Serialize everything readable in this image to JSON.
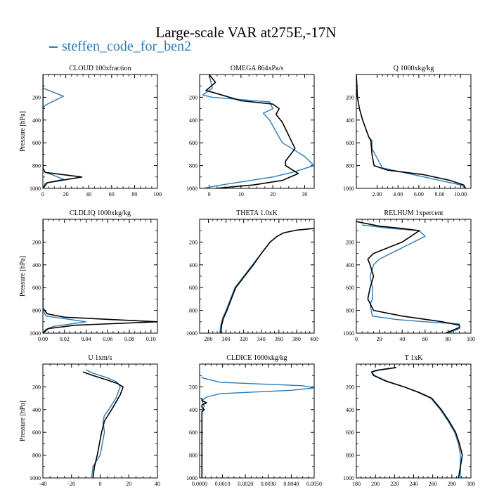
{
  "figure": {
    "title": "Large-scale VAR at275E,-17N",
    "legend": [
      {
        "name": "steffen_code_for_ben2",
        "color": "#2b7bb9"
      }
    ]
  },
  "chart_data": [
    {
      "type": "line",
      "title": "CLOUD  100xfraction",
      "ylabel": "Pressure [hPa]",
      "xlim": [
        0,
        100
      ],
      "xticks": [
        0,
        20,
        40,
        60,
        80,
        100
      ],
      "xtick_labels": [
        "0",
        "20",
        "40",
        "60",
        "80",
        "100"
      ],
      "ylim": [
        1000,
        0
      ],
      "yticks": [
        200,
        400,
        600,
        800,
        1000
      ],
      "series": [
        {
          "color": "#2b7bb9",
          "x": [
            0,
            0,
            18,
            2,
            0,
            0,
            0,
            8,
            18,
            2,
            0
          ],
          "y": [
            0,
            120,
            190,
            270,
            300,
            770,
            850,
            880,
            920,
            955,
            1000
          ]
        },
        {
          "color": "#000000",
          "x": [
            0,
            0,
            0,
            2,
            34,
            4,
            0
          ],
          "y": [
            0,
            770,
            820,
            860,
            900,
            950,
            1000
          ]
        }
      ]
    },
    {
      "type": "line",
      "title": "OMEGA  864xPa/s",
      "ylabel": "",
      "xlim": [
        -3,
        33
      ],
      "xticks": [
        0,
        10,
        20,
        30
      ],
      "xtick_labels": [
        "0",
        "10",
        "20",
        "30"
      ],
      "ylim": [
        1000,
        0
      ],
      "yticks": [
        200,
        400,
        600,
        800,
        1000
      ],
      "series": [
        {
          "color": "#2b7bb9",
          "x": [
            0,
            1,
            -2,
            1,
            19,
            20,
            17,
            19,
            20,
            23,
            26,
            30,
            33,
            26,
            20,
            4,
            -2
          ],
          "y": [
            0,
            120,
            180,
            200,
            240,
            300,
            340,
            400,
            450,
            600,
            650,
            720,
            800,
            860,
            900,
            970,
            1000
          ]
        },
        {
          "color": "#000000",
          "x": [
            0,
            2,
            -1,
            4,
            10,
            20,
            22,
            21,
            23,
            27,
            24,
            24,
            28,
            23,
            14,
            2
          ],
          "y": [
            0,
            70,
            140,
            180,
            230,
            260,
            300,
            350,
            420,
            650,
            760,
            800,
            870,
            930,
            970,
            1000
          ]
        }
      ]
    },
    {
      "type": "line",
      "title": "Q  1000xkg/kg",
      "ylabel": "",
      "xlim": [
        0,
        11
      ],
      "xticks": [
        2,
        4,
        6,
        8,
        10
      ],
      "xtick_labels": [
        "2.00",
        "4.00",
        "6.00",
        "8.00",
        "10.00"
      ],
      "ylim": [
        1000,
        0
      ],
      "yticks": [
        200,
        400,
        600,
        800,
        1000
      ],
      "series": [
        {
          "color": "#2b7bb9",
          "x": [
            0,
            0.1,
            0.3,
            0.6,
            1.0,
            1.2,
            1.5,
            1.5,
            2.5,
            5,
            8,
            10,
            10.5
          ],
          "y": [
            0,
            200,
            300,
            400,
            500,
            550,
            580,
            650,
            820,
            870,
            930,
            970,
            1000
          ]
        },
        {
          "color": "#000000",
          "x": [
            0,
            0.1,
            0.3,
            0.6,
            1.0,
            1.2,
            1.4,
            1.5,
            1.7,
            3,
            6.5,
            9,
            10.3,
            10.5
          ],
          "y": [
            0,
            200,
            300,
            400,
            500,
            550,
            580,
            700,
            800,
            840,
            880,
            930,
            970,
            1000
          ]
        }
      ]
    },
    {
      "type": "line",
      "title": "CLDLIQ  1000xkg/kg",
      "ylabel": "Pressure [hPa]",
      "xlim": [
        0,
        0.106
      ],
      "xticks": [
        0,
        0.02,
        0.04,
        0.06,
        0.08,
        0.1
      ],
      "xtick_labels": [
        "0.00",
        "0.02",
        "0.04",
        "0.06",
        "0.08",
        "0.10"
      ],
      "ylim": [
        1000,
        0
      ],
      "yticks": [
        200,
        400,
        600,
        800,
        1000
      ],
      "series": [
        {
          "color": "#2b7bb9",
          "x": [
            0,
            0,
            0.003,
            0.04,
            0.01,
            0.002,
            0
          ],
          "y": [
            0,
            800,
            850,
            900,
            940,
            970,
            1000
          ]
        },
        {
          "color": "#000000",
          "x": [
            0,
            0,
            0.004,
            0.02,
            0.106,
            0.03,
            0.005,
            0
          ],
          "y": [
            0,
            780,
            830,
            860,
            900,
            930,
            960,
            1000
          ]
        }
      ]
    },
    {
      "type": "line",
      "title": "THETA  1.0xK",
      "ylabel": "",
      "xlim": [
        270,
        400
      ],
      "xticks": [
        280,
        300,
        320,
        340,
        360,
        380,
        400
      ],
      "xtick_labels": [
        "280",
        "300",
        "320",
        "340",
        "360",
        "380",
        "400"
      ],
      "ylim": [
        1000,
        0
      ],
      "yticks": [
        200,
        400,
        600,
        800,
        1000
      ],
      "series": [
        {
          "color": "#2b7bb9",
          "x": [
            400,
            380,
            365,
            358,
            350,
            340,
            330,
            320,
            310,
            305,
            300,
            296,
            294,
            293
          ],
          "y": [
            80,
            95,
            120,
            150,
            200,
            300,
            400,
            500,
            600,
            700,
            800,
            870,
            930,
            1000
          ]
        },
        {
          "color": "#000000",
          "x": [
            400,
            380,
            365,
            358,
            350,
            340,
            331,
            321,
            311,
            306,
            301,
            297,
            295,
            294
          ],
          "y": [
            80,
            95,
            120,
            150,
            200,
            300,
            400,
            500,
            600,
            700,
            800,
            870,
            930,
            1000
          ]
        }
      ]
    },
    {
      "type": "line",
      "title": "RELHUM  1xpercent",
      "ylabel": "",
      "xlim": [
        0,
        100
      ],
      "xticks": [
        0,
        20,
        40,
        60,
        80,
        100
      ],
      "xtick_labels": [
        "0",
        "20",
        "40",
        "60",
        "80",
        "100"
      ],
      "ylim": [
        1000,
        0
      ],
      "yticks": [
        200,
        400,
        600,
        800,
        1000
      ],
      "series": [
        {
          "color": "#2b7bb9",
          "x": [
            5,
            30,
            55,
            60,
            50,
            40,
            30,
            20,
            15,
            12,
            14,
            14,
            12,
            14,
            35,
            60,
            90,
            90,
            80
          ],
          "y": [
            50,
            80,
            100,
            150,
            200,
            250,
            300,
            350,
            400,
            500,
            600,
            700,
            750,
            850,
            880,
            900,
            920,
            960,
            1000
          ]
        },
        {
          "color": "#000000",
          "x": [
            0,
            20,
            40,
            55,
            40,
            15,
            10,
            12,
            15,
            12,
            10,
            15,
            40,
            75,
            90,
            90,
            78
          ],
          "y": [
            20,
            60,
            80,
            100,
            200,
            300,
            350,
            400,
            500,
            600,
            700,
            800,
            850,
            900,
            930,
            950,
            1000
          ]
        }
      ]
    },
    {
      "type": "line",
      "title": "U  1xm/s",
      "ylabel": "Pressure [hPa]",
      "xlim": [
        -40,
        40
      ],
      "xticks": [
        -40,
        -20,
        0,
        20,
        40
      ],
      "xtick_labels": [
        "-40",
        "-20",
        "0",
        "20",
        "40"
      ],
      "ylim": [
        1000,
        0
      ],
      "yticks": [
        200,
        400,
        600,
        800,
        1000
      ],
      "series": [
        {
          "color": "#2b7bb9",
          "x": [
            -10,
            -5,
            5,
            12,
            14,
            11,
            6,
            3,
            2,
            3,
            0,
            -5,
            -6
          ],
          "y": [
            50,
            80,
            120,
            160,
            200,
            300,
            400,
            450,
            500,
            600,
            800,
            900,
            1000
          ]
        },
        {
          "color": "#000000",
          "x": [
            -12,
            -5,
            5,
            12,
            16,
            14,
            8,
            3,
            1,
            -2,
            -4,
            -5
          ],
          "y": [
            70,
            100,
            140,
            170,
            200,
            270,
            400,
            500,
            600,
            800,
            900,
            1000
          ]
        }
      ]
    },
    {
      "type": "line",
      "title": "CLDICE  1000xkg/kg",
      "ylabel": "",
      "xlim": [
        0,
        0.005
      ],
      "xticks": [
        0,
        0.001,
        0.002,
        0.003,
        0.004,
        0.005
      ],
      "xtick_labels": [
        "0.0000",
        "0.0010",
        "0.0020",
        "0.0030",
        "0.0040",
        "0.0050"
      ],
      "ylim": [
        1000,
        0
      ],
      "yticks": [
        200,
        400,
        600,
        800,
        1000
      ],
      "series": [
        {
          "color": "#2b7bb9",
          "x": [
            0.0001,
            0.0001,
            0.0009,
            0.0045,
            0.005,
            0.004,
            0.0009,
            0.0003,
            0.0001,
            0.0002,
            0.0001,
            0.0001
          ],
          "y": [
            110,
            120,
            160,
            190,
            210,
            230,
            260,
            290,
            320,
            370,
            420,
            1000
          ]
        },
        {
          "color": "#000000",
          "x": [
            0.0001,
            0.0001,
            0.0003,
            0.0001,
            0.0001,
            0.0002,
            0.0001,
            0.0001
          ],
          "y": [
            300,
            320,
            340,
            360,
            380,
            400,
            420,
            1000
          ]
        }
      ]
    },
    {
      "type": "line",
      "title": "T  1xK",
      "ylabel": "",
      "xlim": [
        180,
        300
      ],
      "xticks": [
        180,
        200,
        220,
        240,
        260,
        280,
        300
      ],
      "xtick_labels": [
        "180",
        "200",
        "220",
        "240",
        "260",
        "280",
        "300"
      ],
      "ylim": [
        1000,
        0
      ],
      "yticks": [
        200,
        400,
        600,
        800,
        1000
      ],
      "series": [
        {
          "color": "#2b7bb9",
          "x": [
            222,
            211,
            203,
            196,
            199,
            212,
            230,
            245,
            258,
            268,
            276,
            283,
            287,
            289,
            289
          ],
          "y": [
            30,
            45,
            55,
            70,
            100,
            150,
            200,
            250,
            300,
            400,
            500,
            600,
            700,
            800,
            1000
          ]
        },
        {
          "color": "#000000",
          "x": [
            222,
            209,
            201,
            196,
            198,
            211,
            230,
            246,
            259,
            269,
            277,
            284,
            288,
            291,
            287
          ],
          "y": [
            30,
            45,
            55,
            70,
            100,
            150,
            200,
            250,
            300,
            400,
            500,
            600,
            700,
            800,
            1000
          ]
        }
      ]
    }
  ]
}
